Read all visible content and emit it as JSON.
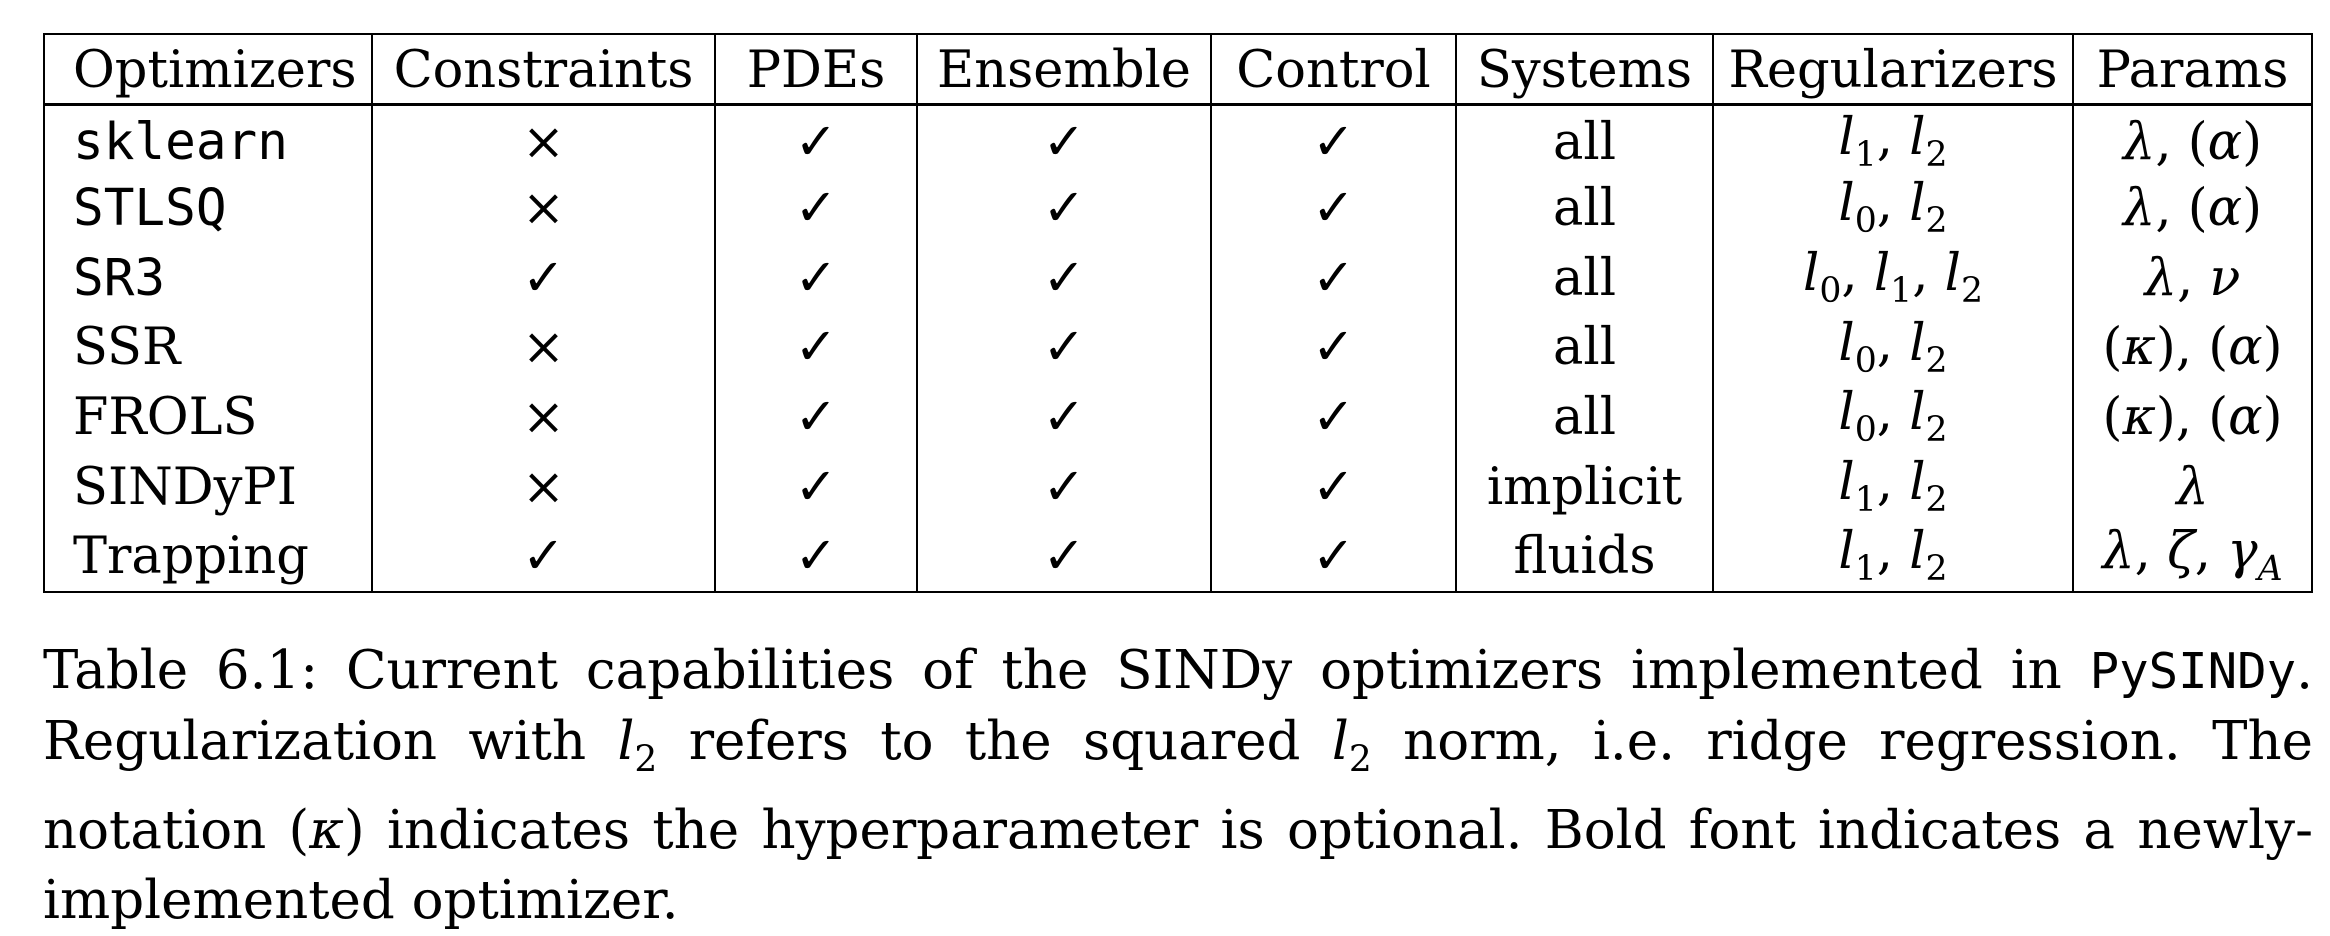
{
  "table": {
    "headers": [
      "Optimizers",
      "Constraints",
      "PDEs",
      "Ensemble",
      "Control",
      "Systems",
      "Regularizers",
      "Params"
    ],
    "rows": [
      {
        "optimizer": "sklearn",
        "style": "mono",
        "constraints": "×",
        "pdes": "✓",
        "ensemble": "✓",
        "control": "✓",
        "systems": "all",
        "regularizers": "l1, l2",
        "params": "λ, (α)"
      },
      {
        "optimizer": "STLSQ",
        "style": "mono",
        "constraints": "×",
        "pdes": "✓",
        "ensemble": "✓",
        "control": "✓",
        "systems": "all",
        "regularizers": "l0, l2",
        "params": "λ, (α)"
      },
      {
        "optimizer": "SR3",
        "style": "mono",
        "constraints": "✓",
        "pdes": "✓",
        "ensemble": "✓",
        "control": "✓",
        "systems": "all",
        "regularizers": "l0, l1, l2",
        "params": "λ, ν"
      },
      {
        "optimizer": "SSR",
        "style": "bold",
        "constraints": "×",
        "pdes": "✓",
        "ensemble": "✓",
        "control": "✓",
        "systems": "all",
        "regularizers": "l0, l2",
        "params": "(κ), (α)"
      },
      {
        "optimizer": "FROLS",
        "style": "bold",
        "constraints": "×",
        "pdes": "✓",
        "ensemble": "✓",
        "control": "✓",
        "systems": "all",
        "regularizers": "l0, l2",
        "params": "(κ), (α)"
      },
      {
        "optimizer": "SINDyPI",
        "style": "bold",
        "constraints": "×",
        "pdes": "✓",
        "ensemble": "✓",
        "control": "✓",
        "systems": "implicit",
        "regularizers": "l1, l2",
        "params": "λ"
      },
      {
        "optimizer": "Trapping",
        "style": "bold",
        "constraints": "✓",
        "pdes": "✓",
        "ensemble": "✓",
        "control": "✓",
        "systems": "fluids",
        "regularizers": "l1, l2",
        "params": "λ, ζ, γA"
      }
    ]
  },
  "caption": {
    "label": "Table 6.1:",
    "text_1": "Current capabilities of the SINDy optimizers implemented in",
    "package": "PySINDy",
    "text_2": ". Regularization with",
    "l2_symbol": "l2",
    "text_3": "refers to the squared",
    "text_4": "norm, i.e. ridge regression. The notation",
    "kappa": "(κ)",
    "text_5": "indicates the hyperparameter is optional. Bold font indicates a newly-implemented optimizer."
  }
}
